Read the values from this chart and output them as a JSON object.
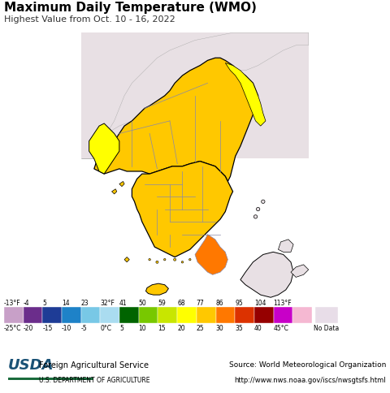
{
  "title": "Maximum Daily Temperature (WMO)",
  "subtitle": "Highest Value from Oct. 10 - 16, 2022",
  "colorbar_colors": [
    "#c8a0c8",
    "#6b2d8b",
    "#1e3c96",
    "#1e82c8",
    "#78c8e6",
    "#aadcf0",
    "#006400",
    "#78c800",
    "#c8e600",
    "#ffff00",
    "#ffc800",
    "#ff7800",
    "#dc3200",
    "#960000",
    "#c800c8",
    "#f5b8d2"
  ],
  "colorbar_labels_f": [
    "-13°F",
    "-4",
    "5",
    "14",
    "23",
    "32°F",
    "41",
    "50",
    "59",
    "68",
    "77",
    "86",
    "95",
    "104",
    "113°F"
  ],
  "colorbar_labels_c": [
    "-25°C",
    "-20",
    "-15",
    "-10",
    "-5",
    "0°C",
    "5",
    "10",
    "15",
    "20",
    "25",
    "30",
    "35",
    "40",
    "45°C"
  ],
  "no_data_color": "#e8dde8",
  "no_data_label": "No Data",
  "ocean_color": "#aad8ee",
  "land_outside_color": "#e8e0e4",
  "korea_yellow_color": "#ffff00",
  "korea_orange_color": "#ffc800",
  "korea_orange2_color": "#ff9600",
  "korea_dark_orange_color": "#ff7800",
  "border_color": "#000000",
  "province_border_color": "#8888aa",
  "title_fontsize": 11,
  "subtitle_fontsize": 8,
  "map_xlim": [
    123.5,
    132.5
  ],
  "map_ylim": [
    32.8,
    43.5
  ],
  "figsize": [
    4.8,
    4.85
  ],
  "dpi": 100
}
